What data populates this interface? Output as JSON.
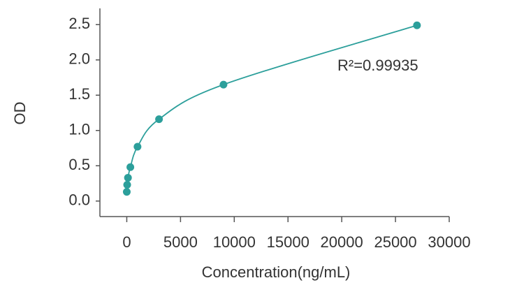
{
  "chart_data": {
    "type": "scatter",
    "x_label": "Concentration(ng/mL)",
    "y_label": "OD",
    "annotation": "R²=0.99935",
    "series": [
      {
        "color": "#2c9f9b",
        "x": [
          27000,
          9000,
          3000,
          1000,
          333,
          111,
          37,
          0
        ],
        "values": [
          2.49,
          1.65,
          1.16,
          0.77,
          0.48,
          0.33,
          0.23,
          0.13
        ]
      }
    ],
    "xlim": [
      -2500,
      30000
    ],
    "xticks": [
      0,
      5000,
      10000,
      15000,
      20000,
      25000,
      30000
    ],
    "ylim": [
      -0.22,
      2.73
    ],
    "yticks": [
      {
        "value": 0,
        "label": "0.0"
      },
      0.5,
      {
        "value": 1,
        "label": "1.0"
      },
      1.5,
      {
        "value": 2,
        "label": "2.0"
      },
      2.5
    ],
    "fit_curve": true
  }
}
